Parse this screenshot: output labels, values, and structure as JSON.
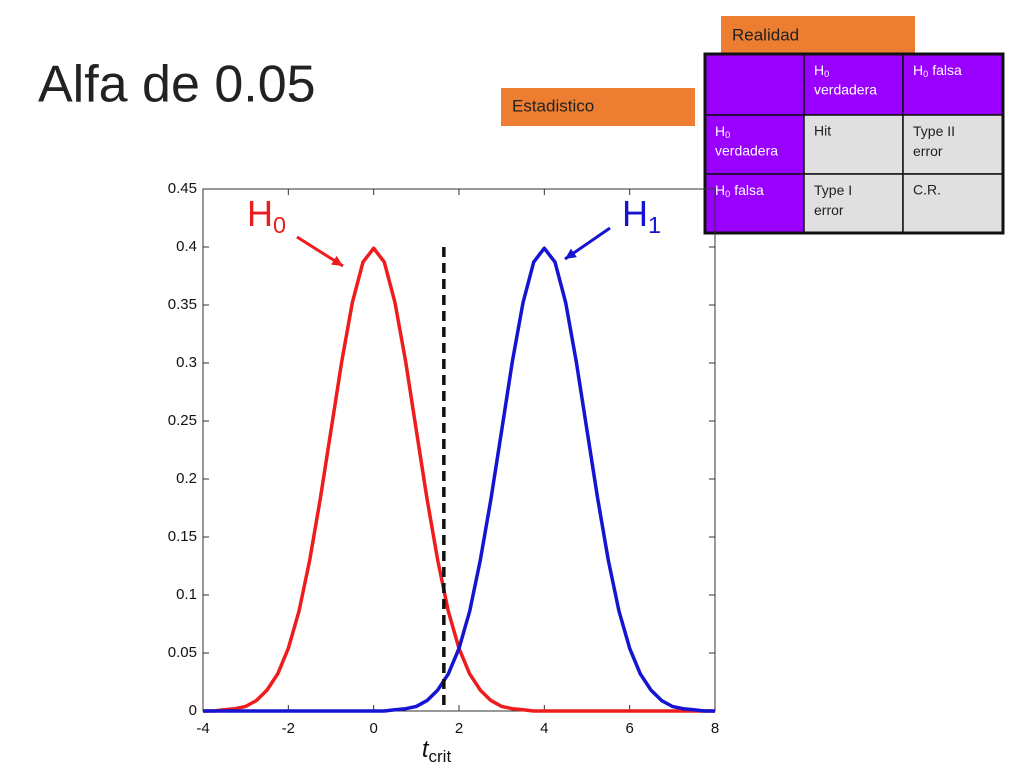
{
  "title": "Alfa de 0.05",
  "labels": {
    "column_header": "Realidad",
    "row_header": "Estadistico"
  },
  "table": {
    "rows": [
      [
        null,
        {
          "text": "H",
          "sub": "0",
          "rest": "verdadera"
        },
        {
          "text": "H",
          "sub": "0",
          "rest": "falsa"
        }
      ],
      [
        {
          "text": "H",
          "sub": "0",
          "rest": "verdadera"
        },
        {
          "text": "Hit"
        },
        {
          "text": "Type II error"
        }
      ],
      [
        {
          "text": "H",
          "sub": "0",
          "rest": "falsa"
        },
        {
          "text": "Type I error"
        },
        {
          "text": "C.R."
        }
      ]
    ]
  },
  "chart_data": {
    "type": "line",
    "x": [
      -4,
      -3.75,
      -3.5,
      -3.25,
      -3,
      -2.75,
      -2.5,
      -2.25,
      -2,
      -1.75,
      -1.5,
      -1.25,
      -1,
      -0.75,
      -0.5,
      -0.25,
      0,
      0.25,
      0.5,
      0.75,
      1,
      1.25,
      1.5,
      1.75,
      2,
      2.25,
      2.5,
      2.75,
      3,
      3.25,
      3.5,
      3.75,
      4,
      4.25,
      4.5,
      4.75,
      5,
      5.25,
      5.5,
      5.75,
      6,
      6.25,
      6.5,
      6.75,
      7,
      7.25,
      7.5,
      7.75,
      8
    ],
    "series": [
      {
        "name": "H0",
        "color": "#ee1c1c",
        "values": [
          0,
          0,
          0.001,
          0.002,
          0.004,
          0.009,
          0.018,
          0.032,
          0.054,
          0.086,
          0.13,
          0.183,
          0.242,
          0.301,
          0.352,
          0.387,
          0.399,
          0.387,
          0.352,
          0.301,
          0.242,
          0.183,
          0.13,
          0.086,
          0.054,
          0.032,
          0.018,
          0.009,
          0.004,
          0.002,
          0.001,
          0,
          0,
          0,
          0,
          0,
          0,
          0,
          0,
          0,
          0,
          0,
          0,
          0,
          0,
          0,
          0,
          0,
          0
        ]
      },
      {
        "name": "H1",
        "color": "#1414d2",
        "values": [
          0,
          0,
          0,
          0,
          0,
          0,
          0,
          0,
          0,
          0,
          0,
          0,
          0,
          0,
          0,
          0,
          0,
          0,
          0.001,
          0.002,
          0.004,
          0.009,
          0.018,
          0.032,
          0.054,
          0.086,
          0.13,
          0.183,
          0.242,
          0.301,
          0.352,
          0.387,
          0.399,
          0.387,
          0.352,
          0.301,
          0.242,
          0.183,
          0.13,
          0.086,
          0.054,
          0.032,
          0.018,
          0.009,
          0.004,
          0.002,
          0.001,
          0,
          0
        ]
      }
    ],
    "annotations": [
      {
        "text": "H",
        "sub": "0",
        "color": "#ee1c1c"
      },
      {
        "text": "H",
        "sub": "1",
        "color": "#1414d2"
      }
    ],
    "critical": {
      "x": 1.645,
      "label": "t",
      "sub": "crit"
    },
    "xlim": [
      -4,
      8
    ],
    "xticks": [
      -4,
      -2,
      0,
      2,
      4,
      6,
      8
    ],
    "ylim": [
      0,
      0.45
    ],
    "yticks": [
      0,
      0.05,
      0.1,
      0.15,
      0.2,
      0.25,
      0.3,
      0.35,
      0.4,
      0.45
    ],
    "grid": false
  }
}
